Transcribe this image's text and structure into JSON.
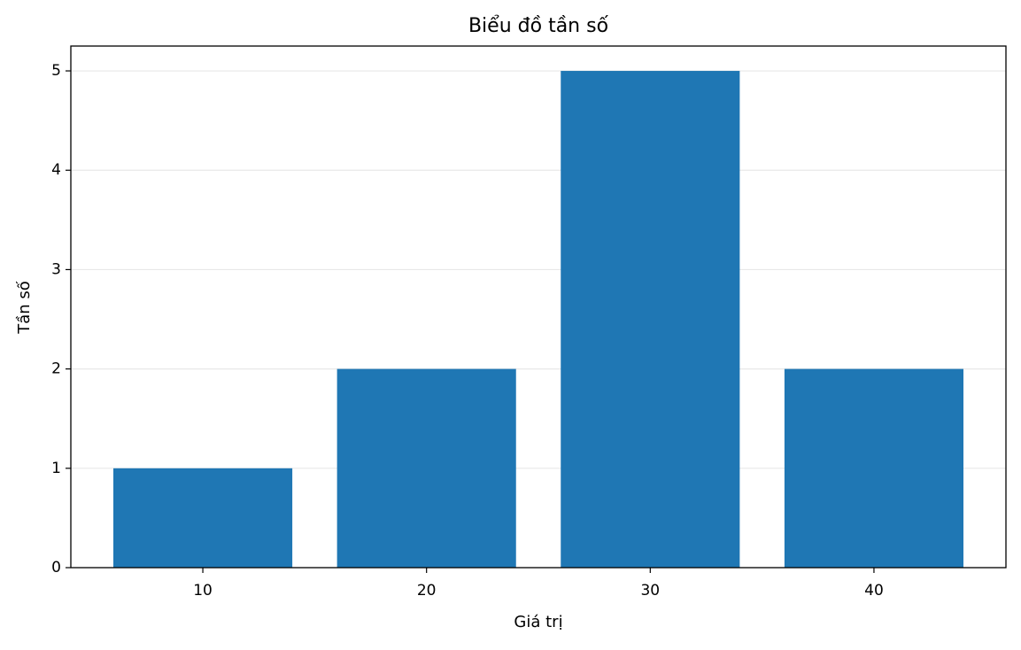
{
  "chart_data": {
    "type": "bar",
    "title": "Biểu đồ tần số",
    "xlabel": "Giá trị",
    "ylabel": "Tần số",
    "x": [
      10,
      20,
      30,
      40
    ],
    "values": [
      1,
      2,
      5,
      2
    ],
    "bar_width": 8,
    "color": "#1f77b4",
    "xlim": [
      4.1,
      45.9
    ],
    "xticks": [
      10,
      20,
      30,
      40
    ],
    "ylim": [
      0,
      5.25
    ],
    "yticks": [
      0,
      1,
      2,
      3,
      4,
      5
    ],
    "grid": true
  }
}
